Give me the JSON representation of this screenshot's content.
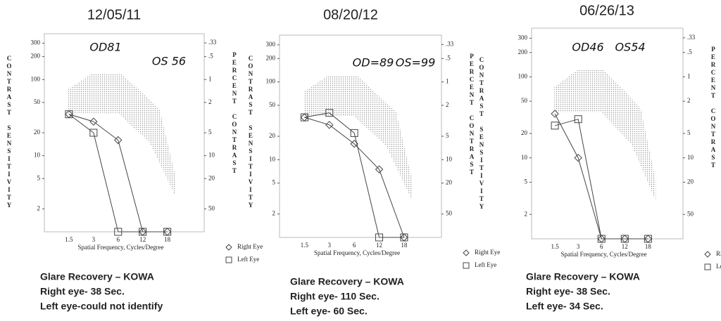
{
  "chart_data": [
    {
      "type": "line",
      "title": "12/05/11",
      "categories": [
        "1.5",
        "3",
        "6",
        "12",
        "18"
      ],
      "x_label": "Spatial Frequency, Cycles/Degree",
      "y_label": "CONTRAST SENSITIVITY",
      "y2_label": "PERCENT CONTRAST",
      "y3_label": "CONTRAST SENSITIVITY",
      "y_scale": "log",
      "ylim": [
        1,
        400
      ],
      "yticks": [
        2,
        5,
        10,
        20,
        50,
        100,
        200,
        300
      ],
      "y2lim": [
        100,
        0.25
      ],
      "y2ticks": [
        {
          "value": 0.33,
          "label": ".33"
        },
        {
          "value": 0.5,
          "label": ".5"
        },
        1,
        2,
        5,
        10,
        20,
        50
      ],
      "series": [
        {
          "name": "Right Eye",
          "marker": "diamond",
          "color": "#444444",
          "values": [
            35,
            28,
            16,
            1,
            1
          ]
        },
        {
          "name": "Left Eye",
          "marker": "square",
          "color": "#444444",
          "values": [
            35,
            20,
            1,
            1,
            1
          ]
        }
      ],
      "annotations": [
        "OD81",
        "OS 56"
      ],
      "notes": [
        "Glare Recovery – KOWA",
        "Right eye- 38 Sec.",
        "Left eye-could not identify"
      ]
    },
    {
      "type": "line",
      "title": "08/20/12",
      "categories": [
        "1.5",
        "3",
        "6",
        "12",
        "18"
      ],
      "x_label": "Spatial Frequency, Cycles/Degree",
      "y2_label": "PERCENT CONTRAST",
      "y3_label": "CONTRAST SENSITIVITY",
      "y_scale": "log",
      "ylim": [
        1,
        400
      ],
      "yticks": [
        2,
        5,
        10,
        20,
        50,
        100,
        200,
        300
      ],
      "y2lim": [
        100,
        0.25
      ],
      "y2ticks": [
        {
          "value": 0.33,
          "label": ".33"
        },
        {
          "value": 0.5,
          "label": ".5"
        },
        1,
        2,
        5,
        10,
        20,
        50
      ],
      "series": [
        {
          "name": "Right Eye",
          "marker": "diamond",
          "color": "#444444",
          "values": [
            35,
            28,
            16,
            7.5,
            1
          ]
        },
        {
          "name": "Left Eye",
          "marker": "square",
          "color": "#444444",
          "values": [
            35,
            40,
            22,
            1,
            1
          ]
        }
      ],
      "annotations": [
        "OD=89",
        "OS=99"
      ],
      "notes": [
        "Glare Recovery – KOWA",
        "Right eye- 110 Sec.",
        "Left eye- 60 Sec."
      ]
    },
    {
      "type": "line",
      "title": "06/26/13",
      "categories": [
        "1.5",
        "3",
        "6",
        "12",
        "18"
      ],
      "x_label": "Spatial Frequency, Cycles/Degree",
      "y2_label": "PERCENT CONTRAST",
      "y_scale": "log",
      "ylim": [
        1,
        400
      ],
      "yticks": [
        2,
        5,
        10,
        20,
        50,
        100,
        200,
        300
      ],
      "y2lim": [
        100,
        0.25
      ],
      "y2ticks": [
        {
          "value": 0.33,
          "label": ".33"
        },
        {
          "value": 0.5,
          "label": ".5"
        },
        1,
        2,
        5,
        10,
        20,
        50
      ],
      "series": [
        {
          "name": "Right Eye",
          "marker": "diamond",
          "color": "#444444",
          "values": [
            35,
            10,
            1,
            1,
            1
          ]
        },
        {
          "name": "Left Eye",
          "marker": "square",
          "color": "#444444",
          "values": [
            25,
            30,
            1,
            1,
            1
          ]
        }
      ],
      "annotations": [
        "OD46",
        "OS54"
      ],
      "notes": [
        "Glare Recovery – KOWA",
        "Right eye- 38 Sec.",
        "Left eye- 34 Sec."
      ]
    }
  ]
}
